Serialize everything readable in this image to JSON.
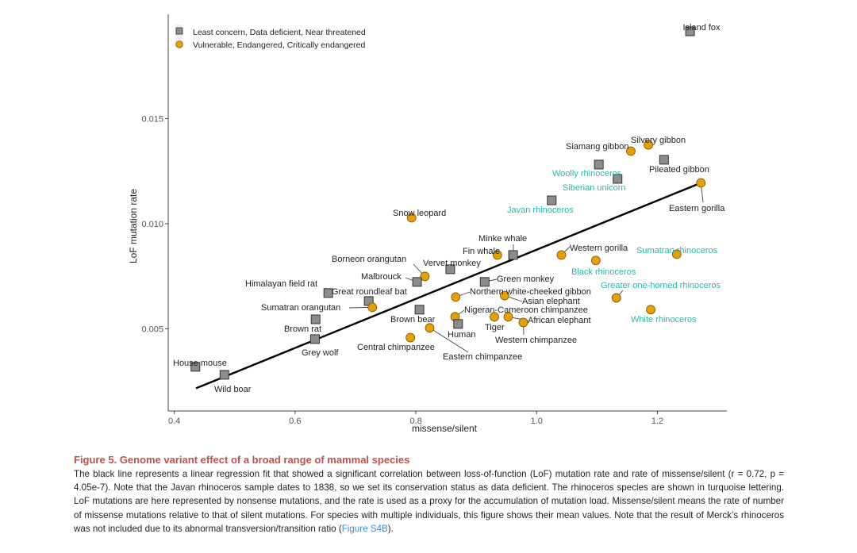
{
  "chart_data": {
    "type": "scatter",
    "title": "",
    "xlabel": "missense/silent",
    "ylabel": "LoF mutation rate",
    "xlim": [
      0.39,
      1.315
    ],
    "ylim": [
      0.00109,
      0.01996
    ],
    "xticks": [
      {
        "value": 0.4,
        "label": "0.4"
      },
      {
        "value": 0.6,
        "label": "0.6"
      },
      {
        "value": 0.8,
        "label": "0.8"
      },
      {
        "value": 1.0,
        "label": "1.0"
      },
      {
        "value": 1.2,
        "label": "1.2"
      }
    ],
    "yticks": [
      {
        "value": 0.005,
        "label": "0.005"
      },
      {
        "value": 0.01,
        "label": "0.010"
      },
      {
        "value": 0.015,
        "label": "0.015"
      }
    ],
    "grid": false,
    "legend": {
      "position": "top-left",
      "entries": [
        {
          "group": "lc",
          "label": "Least concern, Data deficient, Near threatened",
          "color": "#8c8c8c"
        },
        {
          "group": "vu",
          "label": "Vulnerable, Endangered, Critically endangered",
          "color": "#e69f00"
        }
      ]
    },
    "label_colors": {
      "default": "#222222",
      "rhinoceros": "#2bb5a8"
    },
    "regression": {
      "x": [
        0.436,
        1.272
      ],
      "y": [
        0.00217,
        0.01194
      ],
      "color": "#000000"
    },
    "points": [
      {
        "name": "Island fox",
        "x": 1.254,
        "y": 0.01915,
        "group": "lc",
        "rhino": false
      },
      {
        "name": "Siamang gibbon",
        "x": 1.156,
        "y": 0.01345,
        "group": "vu",
        "rhino": false
      },
      {
        "name": "Silvery gibbon",
        "x": 1.185,
        "y": 0.01375,
        "group": "vu",
        "rhino": false
      },
      {
        "name": "Pileated gibbon",
        "x": 1.211,
        "y": 0.01304,
        "group": "lc",
        "rhino": false
      },
      {
        "name": "Woolly rhinoceros",
        "x": 1.103,
        "y": 0.01281,
        "group": "lc",
        "rhino": true
      },
      {
        "name": "Siberian unicorn",
        "x": 1.134,
        "y": 0.01213,
        "group": "lc",
        "rhino": true
      },
      {
        "name": "Javan rhinoceros",
        "x": 1.025,
        "y": 0.01111,
        "group": "lc",
        "rhino": true
      },
      {
        "name": "Eastern gorilla",
        "x": 1.272,
        "y": 0.01194,
        "group": "vu",
        "rhino": false
      },
      {
        "name": "Snow leopard",
        "x": 0.793,
        "y": 0.01028,
        "group": "vu",
        "rhino": false
      },
      {
        "name": "Minke whale",
        "x": 0.961,
        "y": 0.00851,
        "group": "lc",
        "rhino": false
      },
      {
        "name": "Fin whale",
        "x": 0.935,
        "y": 0.00851,
        "group": "vu",
        "rhino": false
      },
      {
        "name": "Western gorilla",
        "x": 1.041,
        "y": 0.00851,
        "group": "vu",
        "rhino": false
      },
      {
        "name": "Sumatran rhinoceros",
        "x": 1.232,
        "y": 0.00855,
        "group": "vu",
        "rhino": true
      },
      {
        "name": "Borneon orangutan",
        "x": 0.815,
        "y": 0.00749,
        "group": "vu",
        "rhino": false
      },
      {
        "name": "Vervet monkey",
        "x": 0.857,
        "y": 0.00783,
        "group": "lc",
        "rhino": false
      },
      {
        "name": "Black rhinoceros",
        "x": 1.098,
        "y": 0.00825,
        "group": "vu",
        "rhino": true
      },
      {
        "name": "Malbrouck",
        "x": 0.802,
        "y": 0.00723,
        "group": "lc",
        "rhino": false
      },
      {
        "name": "Green monkey",
        "x": 0.914,
        "y": 0.00723,
        "group": "lc",
        "rhino": false
      },
      {
        "name": "Himalayan field rat",
        "x": 0.655,
        "y": 0.0067,
        "group": "lc",
        "rhino": false
      },
      {
        "name": "Greater one-horned rhinoceros",
        "x": 1.132,
        "y": 0.00647,
        "group": "vu",
        "rhino": true
      },
      {
        "name": "Great roundleaf bat",
        "x": 0.722,
        "y": 0.00632,
        "group": "lc",
        "rhino": false
      },
      {
        "name": "Northern white-cheeked gibbon",
        "x": 0.866,
        "y": 0.00651,
        "group": "vu",
        "rhino": false
      },
      {
        "name": "Sumatran orangutan",
        "x": 0.728,
        "y": 0.00602,
        "group": "vu",
        "rhino": false
      },
      {
        "name": "Asian elephant",
        "x": 0.947,
        "y": 0.00658,
        "group": "vu",
        "rhino": false
      },
      {
        "name": "Nigeran-Cameroon chimpanzee",
        "x": 0.865,
        "y": 0.00557,
        "group": "vu",
        "rhino": false
      },
      {
        "name": "Brown bear",
        "x": 0.806,
        "y": 0.00591,
        "group": "lc",
        "rhino": false
      },
      {
        "name": "African elephant",
        "x": 0.953,
        "y": 0.00557,
        "group": "vu",
        "rhino": false
      },
      {
        "name": "White rhinoceros",
        "x": 1.189,
        "y": 0.00591,
        "group": "vu",
        "rhino": true
      },
      {
        "name": "Tiger",
        "x": 0.93,
        "y": 0.00557,
        "group": "vu",
        "rhino": false
      },
      {
        "name": "Brown rat",
        "x": 0.634,
        "y": 0.00545,
        "group": "lc",
        "rhino": false
      },
      {
        "name": "Human",
        "x": 0.87,
        "y": 0.00523,
        "group": "lc",
        "rhino": false
      },
      {
        "name": "Western chimpanzee",
        "x": 0.978,
        "y": 0.0053,
        "group": "vu",
        "rhino": false
      },
      {
        "name": "Central chimpanzee",
        "x": 0.791,
        "y": 0.00458,
        "group": "vu",
        "rhino": false
      },
      {
        "name": "Grey wolf",
        "x": 0.633,
        "y": 0.00451,
        "group": "lc",
        "rhino": false
      },
      {
        "name": "Eastern chimpanzee",
        "x": 0.823,
        "y": 0.00504,
        "group": "vu",
        "rhino": false
      },
      {
        "name": "House mouse",
        "x": 0.435,
        "y": 0.00319,
        "group": "lc",
        "rhino": false
      },
      {
        "name": "Wild boar",
        "x": 0.483,
        "y": 0.00281,
        "group": "lc",
        "rhino": false
      }
    ]
  },
  "caption": {
    "title": "Figure 5. Genome variant effect of a broad range of mammal species",
    "body_before_link": "The black line represents a linear regression fit that showed a significant correlation between loss-of-function (LoF) mutation rate and rate of missense/silent (r = 0.72, p = 4.05e-7). Note that the Javan rhinoceros sample dates to 1838, so we set its conservation status as data deficient. The rhinoceros species are shown in turquoise lettering. LoF mutations are here represented by nonsense mutations, and the rate is used as a proxy for the accumulation of mutation load. Missense/silent means the rate of number of missense mutations relative to that of silent mutations. For species with multiple individuals, this figure shows their mean values. Note that the result of Merck’s rhinoceros was not included due to its abnormal transversion/transition ratio (",
    "link": "Figure S4B",
    "body_after_link": ")."
  }
}
